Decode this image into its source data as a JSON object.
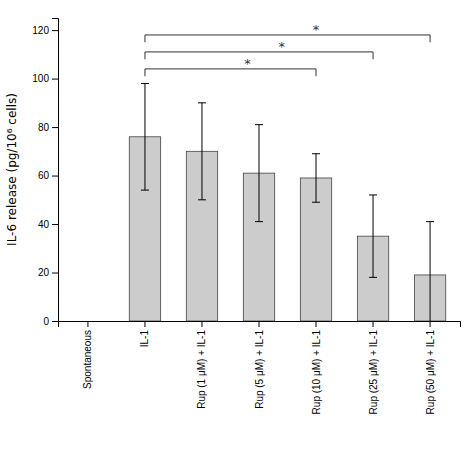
{
  "chart_data": {
    "type": "bar",
    "categories": [
      "Spontaneous",
      "IL-1",
      "Rup (1 μM) + IL-1",
      "Rup (5 μM) + IL-1",
      "Rup (10 μM) + IL-1",
      "Rup (25 μM) + IL-1",
      "Rup (50 μM) + IL-1"
    ],
    "values": [
      0,
      76,
      70,
      61,
      59,
      35,
      19
    ],
    "errors": [
      0,
      22,
      20,
      20,
      10,
      17,
      22
    ],
    "color": "#cccccc",
    "ylabel": "IL-6 release (pg/10⁶ cells)",
    "ylim": [
      0,
      125
    ],
    "yticks": [
      0,
      20,
      40,
      60,
      80,
      100,
      120
    ],
    "grid": false,
    "significance_brackets": [
      {
        "from": "IL-1",
        "to": "Rup (10 μM) + IL-1",
        "y": 104,
        "label": "*"
      },
      {
        "from": "IL-1",
        "to": "Rup (25 μM) + IL-1",
        "y": 111,
        "label": "*"
      },
      {
        "from": "IL-1",
        "to": "Rup (50 μM) + IL-1",
        "y": 118,
        "label": "*"
      }
    ]
  }
}
